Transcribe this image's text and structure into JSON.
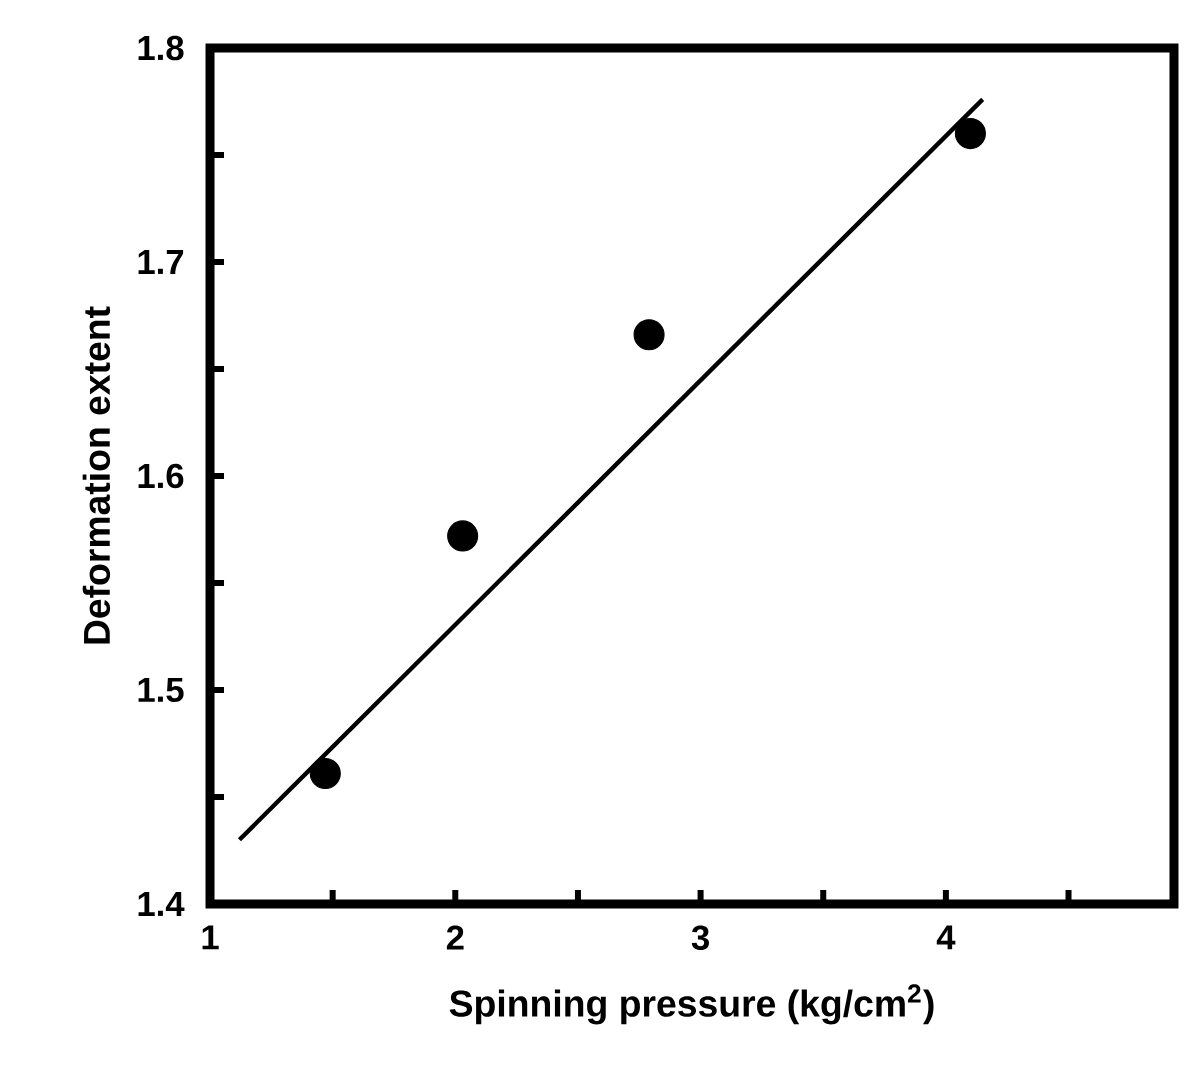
{
  "chart_data": {
    "type": "scatter",
    "xlabel": "Spinning pressure (kg/cm$^{2}$)",
    "ylabel": "Deformation extent",
    "xlim": [
      1,
      4.93
    ],
    "ylim": [
      1.4,
      1.8
    ],
    "xticks": [
      1,
      {
        "value": 1.5,
        "label": null
      },
      2,
      {
        "value": 2.5,
        "label": null
      },
      3,
      {
        "value": 3.5,
        "label": null
      },
      4,
      {
        "value": 4.5,
        "label": null
      }
    ],
    "yticks": [
      1.4,
      {
        "value": 1.45,
        "label": null
      },
      1.5,
      {
        "value": 1.55,
        "label": null
      },
      1.6,
      {
        "value": 1.65,
        "label": null
      },
      1.7,
      {
        "value": 1.75,
        "label": null
      },
      1.8
    ],
    "grid": false,
    "marker": "circle",
    "series": [
      {
        "color": "#000000",
        "x": [
          1.47,
          2.03,
          2.79,
          4.1
        ],
        "values": [
          1.461,
          1.572,
          1.666,
          1.76
        ]
      },
      {
        "type": "line",
        "color": "#000000",
        "marker": "none",
        "line_style": "solid",
        "x": [
          1.12,
          4.15
        ],
        "values": [
          1.43,
          1.776
        ]
      }
    ]
  }
}
